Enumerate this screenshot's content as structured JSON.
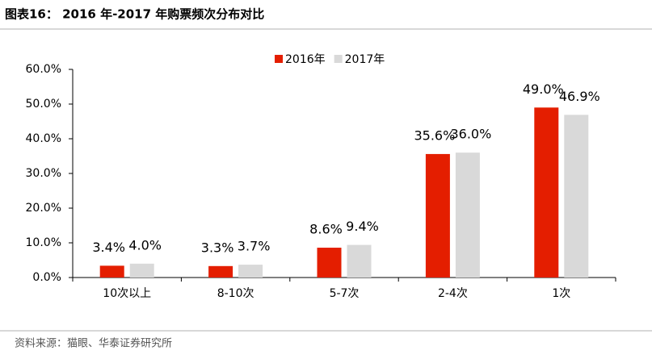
{
  "title": "图表16： 2016 年-2017 年购票频次分布对比",
  "source": "资料来源：猫眼、华泰证券研究所",
  "chart_data": {
    "type": "bar",
    "categories": [
      "10次以上",
      "8-10次",
      "5-7次",
      "2-4次",
      "1次"
    ],
    "series": [
      {
        "name": "2016年",
        "color": "#e41e00",
        "values": [
          3.4,
          3.3,
          8.6,
          35.6,
          49.0
        ],
        "value_labels": [
          "3.4%",
          "3.3%",
          "8.6%",
          "35.6%",
          "49.0%"
        ]
      },
      {
        "name": "2017年",
        "color": "#d9d9d9",
        "values": [
          4.0,
          3.7,
          9.4,
          36.0,
          46.9
        ],
        "value_labels": [
          "4.0%",
          "3.7%",
          "9.4%",
          "36.0%",
          "46.9%"
        ]
      }
    ],
    "ylim": [
      0,
      60
    ],
    "yticks": [
      {
        "value": 0,
        "label": "0.0%"
      },
      {
        "value": 10,
        "label": "10.0%"
      },
      {
        "value": 20,
        "label": "20.0%"
      },
      {
        "value": 30,
        "label": "30.0%"
      },
      {
        "value": 40,
        "label": "40.0%"
      },
      {
        "value": 50,
        "label": "50.0%"
      },
      {
        "value": 60,
        "label": "60.0%"
      }
    ],
    "legend": "top"
  }
}
